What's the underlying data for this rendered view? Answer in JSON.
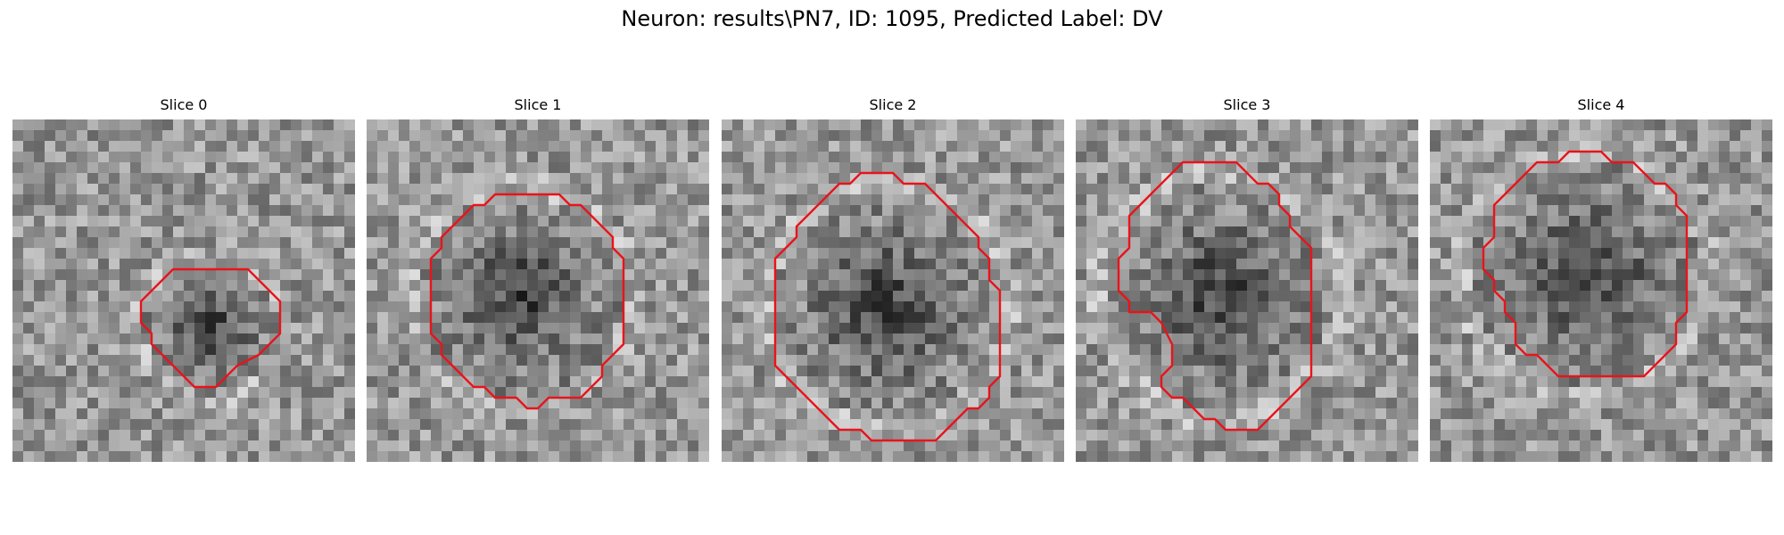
{
  "figure": {
    "title": "Neuron: results\\PN7, ID: 1095, Predicted Label: DV",
    "contour_color": "#e8141b",
    "colormap": "grayscale",
    "slices": [
      {
        "title": "Slice 0",
        "contour": [
          [
            19,
            14
          ],
          [
            22,
            14
          ],
          [
            25,
            17
          ],
          [
            25,
            20
          ],
          [
            23,
            22
          ],
          [
            21,
            23
          ],
          [
            20,
            24
          ],
          [
            19,
            25
          ],
          [
            17,
            25
          ],
          [
            16,
            24
          ],
          [
            14,
            22
          ],
          [
            13,
            21
          ],
          [
            13,
            20
          ],
          [
            12,
            19
          ],
          [
            12,
            17
          ],
          [
            14,
            15
          ],
          [
            15,
            14
          ]
        ]
      },
      {
        "title": "Slice 1",
        "contour": [
          [
            14,
            7
          ],
          [
            18,
            7
          ],
          [
            19,
            8
          ],
          [
            20,
            8
          ],
          [
            21,
            9
          ],
          [
            22,
            10
          ],
          [
            23,
            11
          ],
          [
            23,
            12
          ],
          [
            24,
            13
          ],
          [
            24,
            17
          ],
          [
            24,
            21
          ],
          [
            23,
            22
          ],
          [
            22,
            23
          ],
          [
            22,
            24
          ],
          [
            21,
            25
          ],
          [
            20,
            26
          ],
          [
            17,
            26
          ],
          [
            16,
            27
          ],
          [
            15,
            27
          ],
          [
            14,
            26
          ],
          [
            12,
            26
          ],
          [
            11,
            25
          ],
          [
            10,
            25
          ],
          [
            9,
            24
          ],
          [
            8,
            23
          ],
          [
            7,
            22
          ],
          [
            7,
            21
          ],
          [
            6,
            20
          ],
          [
            6,
            17
          ],
          [
            6,
            15
          ],
          [
            6,
            13
          ],
          [
            7,
            12
          ],
          [
            7,
            11
          ],
          [
            8,
            10
          ],
          [
            9,
            9
          ],
          [
            10,
            8
          ],
          [
            11,
            8
          ],
          [
            12,
            7
          ]
        ]
      },
      {
        "title": "Slice 2",
        "contour": [
          [
            13,
            5
          ],
          [
            16,
            5
          ],
          [
            17,
            6
          ],
          [
            19,
            6
          ],
          [
            20,
            7
          ],
          [
            21,
            8
          ],
          [
            22,
            9
          ],
          [
            23,
            10
          ],
          [
            24,
            11
          ],
          [
            24,
            12
          ],
          [
            25,
            13
          ],
          [
            25,
            15
          ],
          [
            26,
            16
          ],
          [
            26,
            20
          ],
          [
            26,
            24
          ],
          [
            25,
            25
          ],
          [
            25,
            26
          ],
          [
            24,
            27
          ],
          [
            23,
            27
          ],
          [
            22,
            28
          ],
          [
            21,
            29
          ],
          [
            20,
            30
          ],
          [
            17,
            30
          ],
          [
            14,
            30
          ],
          [
            13,
            29
          ],
          [
            11,
            29
          ],
          [
            10,
            28
          ],
          [
            9,
            27
          ],
          [
            8,
            26
          ],
          [
            7,
            25
          ],
          [
            6,
            24
          ],
          [
            5,
            23
          ],
          [
            5,
            21
          ],
          [
            5,
            17
          ],
          [
            5,
            14
          ],
          [
            5,
            13
          ],
          [
            6,
            12
          ],
          [
            7,
            11
          ],
          [
            7,
            10
          ],
          [
            8,
            9
          ],
          [
            9,
            8
          ],
          [
            10,
            7
          ],
          [
            11,
            6
          ],
          [
            12,
            6
          ]
        ]
      },
      {
        "title": "Slice 3",
        "contour": [
          [
            10,
            4
          ],
          [
            13,
            4
          ],
          [
            15,
            4
          ],
          [
            16,
            5
          ],
          [
            17,
            6
          ],
          [
            18,
            6
          ],
          [
            19,
            7
          ],
          [
            19,
            8
          ],
          [
            20,
            9
          ],
          [
            20,
            10
          ],
          [
            21,
            11
          ],
          [
            22,
            12
          ],
          [
            22,
            16
          ],
          [
            22,
            20
          ],
          [
            22,
            24
          ],
          [
            21,
            25
          ],
          [
            20,
            26
          ],
          [
            19,
            27
          ],
          [
            18,
            28
          ],
          [
            17,
            29
          ],
          [
            15,
            29
          ],
          [
            14,
            29
          ],
          [
            13,
            28
          ],
          [
            12,
            28
          ],
          [
            11,
            27
          ],
          [
            10,
            26
          ],
          [
            9,
            26
          ],
          [
            8,
            25
          ],
          [
            8,
            24
          ],
          [
            9,
            23
          ],
          [
            9,
            21
          ],
          [
            8,
            19
          ],
          [
            7,
            18
          ],
          [
            5,
            18
          ],
          [
            5,
            17
          ],
          [
            4,
            16
          ],
          [
            4,
            13
          ],
          [
            5,
            12
          ],
          [
            5,
            9
          ],
          [
            6,
            8
          ],
          [
            7,
            7
          ],
          [
            8,
            6
          ],
          [
            9,
            5
          ]
        ]
      },
      {
        "title": "Slice 4",
        "contour": [
          [
            14,
            3
          ],
          [
            16,
            3
          ],
          [
            17,
            4
          ],
          [
            19,
            4
          ],
          [
            20,
            5
          ],
          [
            21,
            6
          ],
          [
            22,
            6
          ],
          [
            23,
            7
          ],
          [
            23,
            8
          ],
          [
            24,
            9
          ],
          [
            24,
            10
          ],
          [
            24,
            16
          ],
          [
            24,
            18
          ],
          [
            23,
            19
          ],
          [
            23,
            21
          ],
          [
            22,
            22
          ],
          [
            21,
            23
          ],
          [
            20,
            24
          ],
          [
            19,
            24
          ],
          [
            17,
            24
          ],
          [
            12,
            24
          ],
          [
            11,
            23
          ],
          [
            10,
            22
          ],
          [
            9,
            22
          ],
          [
            8,
            21
          ],
          [
            8,
            19
          ],
          [
            7,
            18
          ],
          [
            7,
            17
          ],
          [
            6,
            16
          ],
          [
            6,
            15
          ],
          [
            5,
            14
          ],
          [
            5,
            13
          ],
          [
            5,
            12
          ],
          [
            6,
            11
          ],
          [
            6,
            9
          ],
          [
            6,
            8
          ],
          [
            7,
            7
          ],
          [
            8,
            6
          ],
          [
            9,
            5
          ],
          [
            10,
            4
          ],
          [
            12,
            4
          ],
          [
            13,
            3
          ]
        ]
      }
    ]
  }
}
